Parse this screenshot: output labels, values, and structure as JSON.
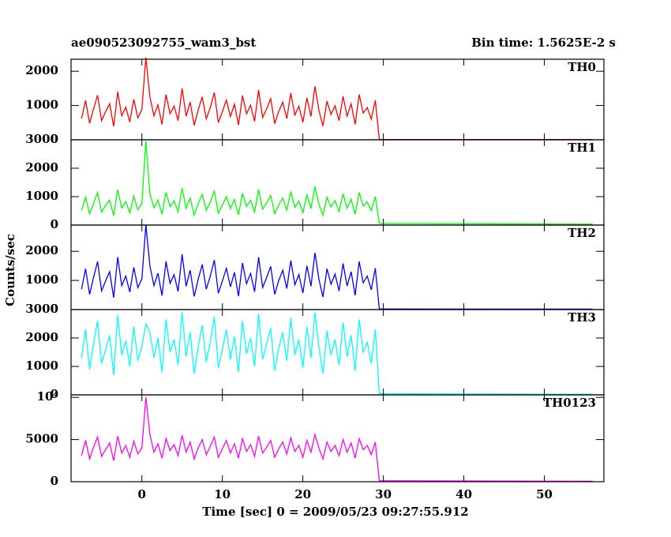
{
  "chart_data": {
    "type": "line",
    "title": "ae090523092755_wam3_bst",
    "subtitle": "Bin time: 1.5625E-2 s",
    "xlabel": "Time [sec] 0 = 2009/05/23 09:27:55.912",
    "ylabel": "Counts/sec",
    "xlim": [
      -8.8,
      57.4
    ],
    "xticks": [
      0,
      10,
      20,
      30,
      40,
      50
    ],
    "x": [
      -7.5,
      -7,
      -6.5,
      -6,
      -5.5,
      -5,
      -4.5,
      -4,
      -3.5,
      -3,
      -2.5,
      -2,
      -1.5,
      -1,
      -0.5,
      0,
      0.5,
      1,
      1.5,
      2,
      2.5,
      3,
      3.5,
      4,
      4.5,
      5,
      5.5,
      6,
      6.5,
      7,
      7.5,
      8,
      8.5,
      9,
      9.5,
      10,
      10.5,
      11,
      11.5,
      12,
      12.5,
      13,
      13.5,
      14,
      14.5,
      15,
      15.5,
      16,
      16.5,
      17,
      17.5,
      18,
      18.5,
      19,
      19.5,
      20,
      20.5,
      21,
      21.5,
      22,
      22.5,
      23,
      23.5,
      24,
      24.5,
      25,
      25.5,
      26,
      26.5,
      27,
      27.5,
      28,
      28.5,
      29,
      29.5,
      56
    ],
    "series": [
      {
        "name": "TH0",
        "color": "#ff0000",
        "ylim": [
          0,
          2350
        ],
        "yticks": [
          0,
          1000,
          2000
        ],
        "values": [
          620,
          1150,
          480,
          900,
          1300,
          560,
          820,
          1050,
          390,
          1400,
          700,
          950,
          520,
          1180,
          640,
          880,
          2400,
          1250,
          700,
          1020,
          450,
          1320,
          760,
          980,
          560,
          1500,
          690,
          1100,
          420,
          870,
          1250,
          610,
          940,
          1380,
          500,
          820,
          1160,
          680,
          1040,
          430,
          1290,
          760,
          1010,
          540,
          1450,
          650,
          900,
          1200,
          470,
          830,
          1100,
          620,
          1360,
          720,
          980,
          510,
          1220,
          680,
          1560,
          860,
          400,
          1130,
          740,
          990,
          560,
          1270,
          690,
          1050,
          450,
          1320,
          780,
          940,
          600,
          1150,
          10,
          8
        ]
      },
      {
        "name": "TH1",
        "color": "#00ff00",
        "ylim": [
          0,
          3000
        ],
        "yticks": [
          0,
          1000,
          2000,
          3000
        ],
        "values": [
          520,
          980,
          400,
          760,
          1150,
          450,
          700,
          880,
          330,
          1250,
          600,
          820,
          430,
          1020,
          540,
          760,
          2950,
          1100,
          610,
          880,
          380,
          1150,
          650,
          850,
          470,
          1300,
          590,
          950,
          350,
          750,
          1080,
          520,
          810,
          1200,
          420,
          700,
          1000,
          580,
          900,
          360,
          1120,
          650,
          870,
          460,
          1250,
          560,
          780,
          1040,
          400,
          710,
          950,
          530,
          1180,
          620,
          850,
          430,
          1060,
          580,
          1350,
          740,
          340,
          980,
          640,
          860,
          480,
          1100,
          590,
          910,
          380,
          1150,
          670,
          810,
          510,
          1000,
          60,
          30
        ]
      },
      {
        "name": "TH2",
        "color": "#0000ff",
        "ylim": [
          0,
          2900
        ],
        "yticks": [
          0,
          1000,
          2000
        ],
        "values": [
          700,
          1400,
          520,
          1100,
          1650,
          640,
          980,
          1300,
          410,
          1800,
          820,
          1150,
          600,
          1450,
          750,
          1050,
          2900,
          1500,
          820,
          1250,
          480,
          1650,
          900,
          1200,
          620,
          1900,
          800,
          1350,
          450,
          1050,
          1550,
          700,
          1150,
          1700,
          560,
          980,
          1420,
          780,
          1280,
          460,
          1600,
          890,
          1240,
          610,
          1800,
          760,
          1100,
          1480,
          520,
          1000,
          1350,
          720,
          1680,
          850,
          1200,
          570,
          1500,
          800,
          1950,
          1040,
          430,
          1400,
          870,
          1220,
          640,
          1580,
          810,
          1300,
          490,
          1650,
          920,
          1150,
          680,
          1420,
          20,
          15
        ]
      },
      {
        "name": "TH3",
        "color": "#00ffff",
        "ylim": [
          0,
          3000
        ],
        "yticks": [
          0,
          1000,
          2000,
          3000
        ],
        "values": [
          1300,
          2300,
          900,
          1800,
          2600,
          1100,
          1600,
          2100,
          700,
          2800,
          1400,
          1900,
          1000,
          2400,
          1200,
          1700,
          2500,
          2200,
          1300,
          2000,
          800,
          2650,
          1500,
          1950,
          1050,
          2900,
          1350,
          2200,
          750,
          1700,
          2450,
          1150,
          1850,
          2750,
          950,
          1600,
          2300,
          1250,
          2050,
          800,
          2600,
          1450,
          2000,
          1000,
          2850,
          1250,
          1800,
          2350,
          850,
          1650,
          2200,
          1200,
          2700,
          1400,
          1950,
          950,
          2400,
          1300,
          2900,
          1700,
          750,
          2250,
          1400,
          1950,
          1050,
          2550,
          1350,
          2100,
          850,
          2650,
          1500,
          1850,
          1100,
          2300,
          40,
          20
        ]
      },
      {
        "name": "TH0123",
        "color": "#ff00ff",
        "ylim": [
          0,
          10300
        ],
        "yticks": [
          0,
          5000,
          {
            "value": 10000,
            "label": "10⁴"
          }
        ],
        "values": [
          3100,
          4900,
          2700,
          4100,
          5300,
          3000,
          3800,
          4600,
          2500,
          5400,
          3400,
          4300,
          2900,
          4800,
          3300,
          4000,
          10000,
          5600,
          3500,
          4500,
          2800,
          5100,
          3700,
          4400,
          3100,
          5500,
          3500,
          4700,
          2700,
          4000,
          5000,
          3200,
          4200,
          5300,
          2900,
          3900,
          4900,
          3400,
          4500,
          2800,
          5100,
          3600,
          4400,
          3000,
          5400,
          3400,
          4100,
          4900,
          2900,
          3900,
          4700,
          3300,
          5200,
          3600,
          4300,
          2900,
          4900,
          3500,
          5600,
          4000,
          2700,
          4700,
          3600,
          4300,
          3100,
          5000,
          3500,
          4600,
          2800,
          5100,
          3800,
          4300,
          3200,
          4700,
          120,
          60
        ]
      }
    ]
  }
}
